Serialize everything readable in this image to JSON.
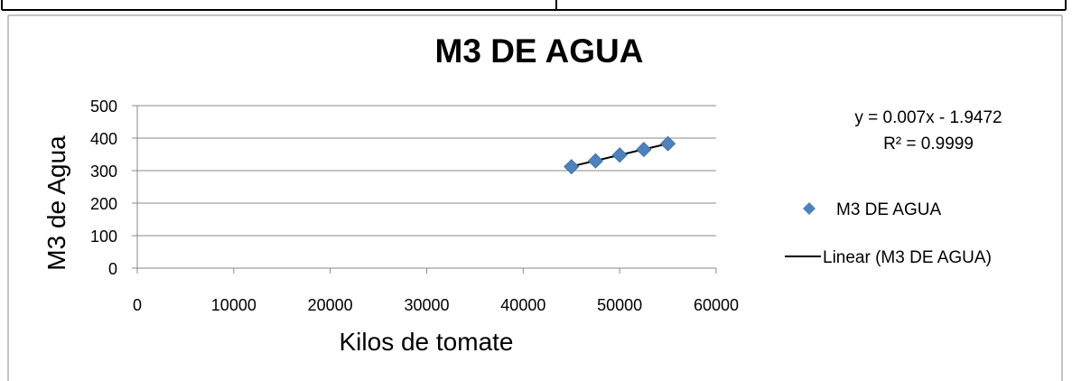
{
  "chart_data": {
    "type": "scatter",
    "title": "M3 DE AGUA",
    "xlabel": "Kilos de tomate",
    "ylabel": "M3 de Agua",
    "xlim": [
      0,
      60000
    ],
    "ylim": [
      0,
      500
    ],
    "x_ticks": [
      "0",
      "10000",
      "20000",
      "30000",
      "40000",
      "50000",
      "60000"
    ],
    "y_ticks": [
      "0",
      "100",
      "200",
      "300",
      "400",
      "500"
    ],
    "grid": "horizontal",
    "legend_position": "right",
    "series": [
      {
        "name": "M3 DE AGUA",
        "color": "#4f81bd",
        "marker": "diamond",
        "x": [
          45000,
          47500,
          50000,
          52500,
          55000
        ],
        "y": [
          312,
          330,
          348,
          365,
          383
        ]
      }
    ],
    "trendline": {
      "name": "Linear (M3 DE AGUA)",
      "color": "#000000",
      "slope": 0.007,
      "intercept": -1.9472,
      "x_range": [
        45000,
        55000
      ],
      "equation": "y = 0.007x - 1.9472",
      "r_squared": "R² = 0.9999"
    }
  }
}
